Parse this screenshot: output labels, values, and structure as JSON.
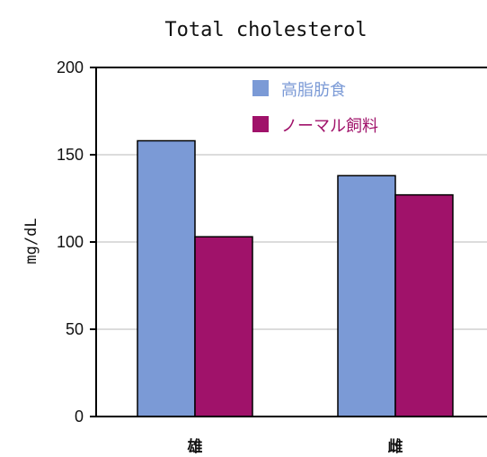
{
  "chart_data": {
    "type": "bar",
    "title": "Total cholesterol",
    "xlabel": "",
    "ylabel": "mg/dL",
    "ylim": [
      0,
      200
    ],
    "yticks": [
      0,
      50,
      100,
      150,
      200
    ],
    "grid": true,
    "legend_position": "top-right",
    "categories": [
      "雄",
      "雌"
    ],
    "series": [
      {
        "name": "高脂肪食",
        "color": "#7b9ad6",
        "values": [
          158,
          138
        ]
      },
      {
        "name": "ノーマル飼料",
        "color": "#a0126a",
        "values": [
          103,
          127
        ]
      }
    ]
  }
}
